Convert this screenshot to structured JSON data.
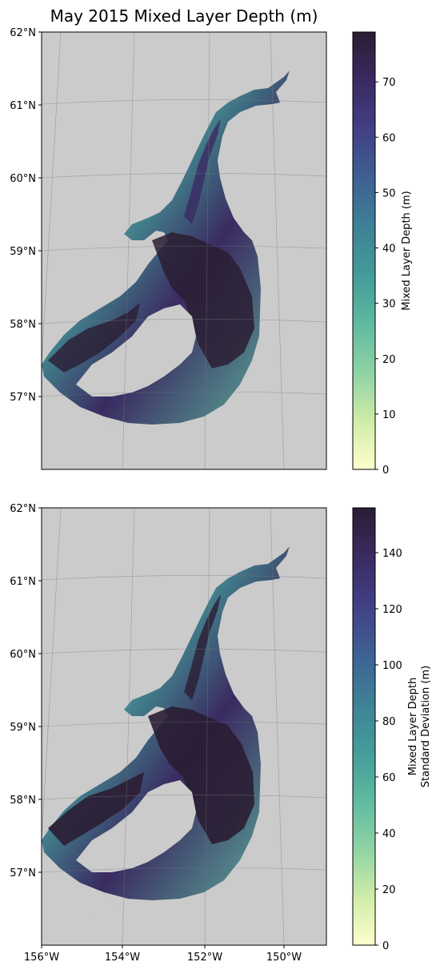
{
  "title": "May 2015 Mixed Layer Depth (m)",
  "colors": {
    "land": "#cbcbcb",
    "grid": "#7a7a7a",
    "colormap": [
      "#fdfecc",
      "#cfeca8",
      "#8fd3a4",
      "#5fbaa0",
      "#449d9a",
      "#3e7f96",
      "#3e5f93",
      "#423f85",
      "#3a2a61",
      "#2a1d33"
    ]
  },
  "panels": [
    {
      "lat_labels": [
        "62°N",
        "61°N",
        "60°N",
        "59°N",
        "58°N",
        "57°N"
      ],
      "colorbar": {
        "label_lines": [
          "Mixed Layer Depth (m)"
        ],
        "ticks": [
          "0",
          "10",
          "20",
          "30",
          "40",
          "50",
          "60",
          "70"
        ],
        "max": 79
      }
    },
    {
      "lat_labels": [
        "62°N",
        "61°N",
        "60°N",
        "59°N",
        "58°N",
        "57°N"
      ],
      "lon_labels": [
        "156°W",
        "154°W",
        "152°W",
        "150°W"
      ],
      "colorbar": {
        "label_lines": [
          "Mixed Layer Depth",
          "Standard Deviation (m)"
        ],
        "ticks": [
          "0",
          "20",
          "40",
          "60",
          "80",
          "100",
          "120",
          "140"
        ],
        "max": 156
      }
    }
  ]
}
